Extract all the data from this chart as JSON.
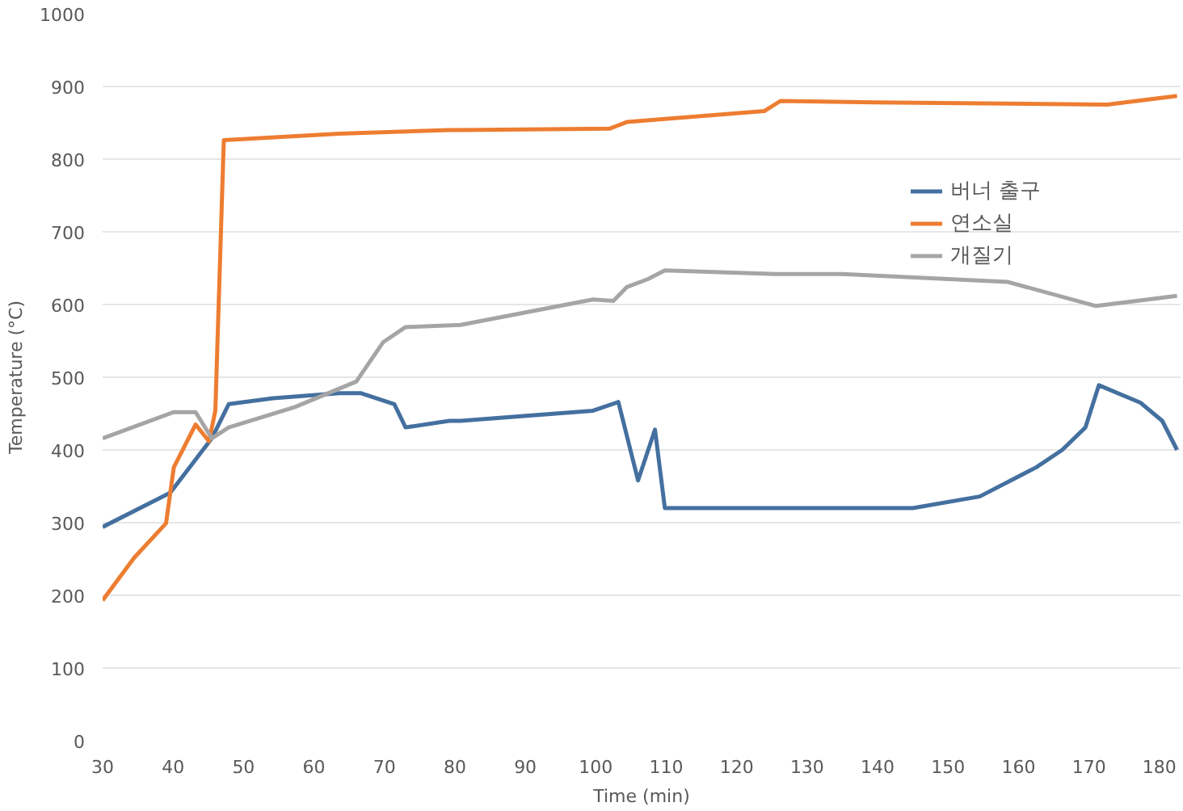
{
  "chart_data": {
    "type": "line",
    "xlabel": "Time (min)",
    "ylabel": "Temperature (°C)",
    "xlim": [
      30,
      183
    ],
    "xticks": [
      30,
      40,
      50,
      60,
      70,
      80,
      90,
      100,
      110,
      120,
      130,
      140,
      150,
      160,
      170,
      180
    ],
    "ylim": [
      0,
      1000
    ],
    "yticks": [
      0,
      100,
      200,
      300,
      400,
      500,
      600,
      700,
      800,
      900,
      1000
    ],
    "grid": "y",
    "legend": "right",
    "marker": "none",
    "line_style": "solid",
    "series": [
      {
        "name": "버너 출구",
        "color": "#44709f",
        "x": [
          30,
          39.6,
          45.5,
          47.9,
          54.2,
          63.6,
          66.7,
          71.4,
          73,
          79.2,
          80.8,
          99.6,
          103.2,
          106,
          108.4,
          109.8,
          145,
          154.5,
          162.5,
          166.2,
          169.5,
          171.4,
          177.3,
          180.4,
          182.5
        ],
        "values": [
          294,
          341,
          416,
          463,
          471,
          478,
          478,
          463,
          431,
          440,
          440,
          454,
          466,
          358,
          428,
          320,
          320,
          336,
          376,
          400,
          431,
          489,
          465,
          440,
          400
        ]
      },
      {
        "name": "연소실",
        "color": "#ed7d31",
        "x": [
          30,
          34.5,
          39,
          40.1,
          43.2,
          45.1,
          46,
          47.2,
          63.6,
          79.2,
          80.8,
          102,
          104.4,
          123.9,
          126.2,
          139.6,
          172.6,
          182.5
        ],
        "values": [
          193,
          252,
          299,
          376,
          435,
          412,
          454,
          826,
          835,
          840,
          840,
          842,
          851,
          866,
          880,
          878,
          875,
          887
        ]
      },
      {
        "name": "개질기",
        "color": "#a5a5a5",
        "x": [
          30,
          40.1,
          43.2,
          45.5,
          47.9,
          57.3,
          66,
          69.8,
          73,
          80.8,
          99.6,
          102.5,
          104.4,
          107.4,
          109.8,
          125.5,
          135,
          158.5,
          171,
          182.5
        ],
        "values": [
          416,
          452,
          452,
          416,
          431,
          459,
          494,
          548,
          569,
          572,
          607,
          605,
          624,
          635,
          647,
          642,
          642,
          631,
          598,
          612
        ]
      }
    ]
  }
}
